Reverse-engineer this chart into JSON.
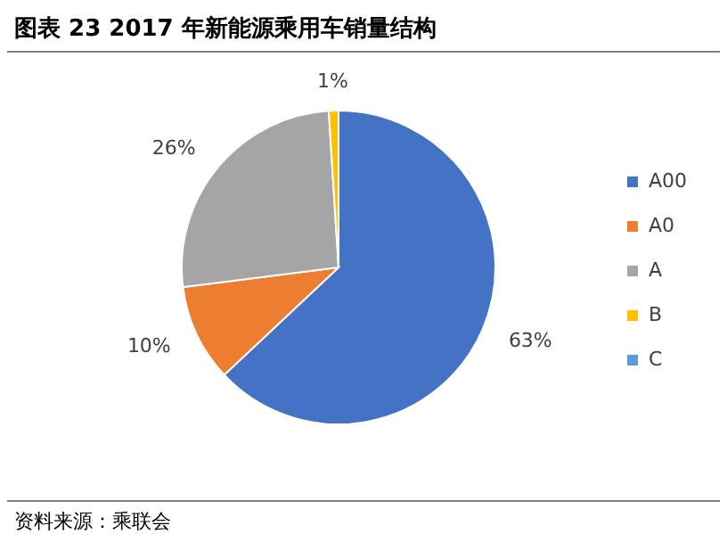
{
  "chart_data": {
    "type": "pie",
    "title": "图表 23 2017 年新能源乘用车销量结构",
    "categories": [
      "A00",
      "A0",
      "A",
      "B",
      "C"
    ],
    "values": [
      63,
      10,
      26,
      1,
      0
    ],
    "colors": [
      "#4472c4",
      "#ed7d31",
      "#a5a5a5",
      "#ffc000",
      "#5b9bd5"
    ],
    "value_labels": [
      "63%",
      "10%",
      "26%",
      "1%",
      null
    ],
    "legend": "right",
    "annotations": [
      "资料来源：乘联会"
    ]
  }
}
